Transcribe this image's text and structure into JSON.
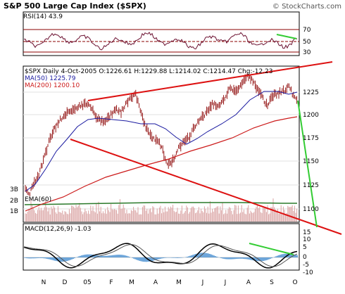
{
  "header": {
    "title": "S&P 500 Large Cap Index ($SPX)",
    "credit": "© StockCharts.com"
  },
  "rsi_panel": {
    "label": "RSI(14) 43.9",
    "levels": [
      "70",
      "50",
      "30"
    ]
  },
  "price_panel": {
    "info_line": "$SPX Daily 4-Oct-2005 O:1226.61 H:1229.88 L:1214.02 C:1214.47 Chg:-12.23",
    "ma50_label": "MA(50) 1225.79",
    "ma200_label": "MA(200) 1200.10",
    "price_ticks": [
      "1225",
      "1200",
      "1175",
      "1150",
      "1125",
      "1100"
    ],
    "volume_ticks": [
      "3B",
      "2B",
      "1B"
    ],
    "volume_ema_label": "EMA(60)"
  },
  "macd_panel": {
    "label": "MACD(12,26,9) -1.03",
    "ticks": [
      "15",
      "10",
      "5",
      "0",
      "-5",
      "-10"
    ]
  },
  "x_axis": {
    "labels": [
      "N",
      "D",
      "05",
      "F",
      "M",
      "A",
      "M",
      "J",
      "J",
      "A",
      "S",
      "O"
    ]
  },
  "colors": {
    "price_bars": "#8b0000",
    "ma50": "#1a1aa0",
    "ma200": "#cc1a1a",
    "trendline": "#dd1111",
    "divergence": "#33cc33",
    "volume": "#d9a0a0",
    "volume_ema": "#2a7a2a",
    "macd_hist": "#4a90d0"
  },
  "chart_data": {
    "type": "line",
    "title": "S&P 500 Large Cap Index ($SPX)",
    "x": [
      "N",
      "D",
      "05",
      "F",
      "M",
      "A",
      "M",
      "J",
      "J",
      "A",
      "S",
      "O"
    ],
    "series": [
      {
        "name": "MA(50)",
        "values": [
          1140,
          1168,
          1192,
          1195,
          1200,
          1190,
          1170,
          1175,
          1200,
          1225,
          1228,
          1226
        ]
      },
      {
        "name": "MA(200)",
        "values": [
          1110,
          1115,
          1125,
          1138,
          1152,
          1165,
          1170,
          1176,
          1182,
          1192,
          1196,
          1200
        ]
      }
    ],
    "ylim": [
      1090,
      1250
    ],
    "last_values": {
      "open": 1226.61,
      "high": 1229.88,
      "low": 1214.02,
      "close": 1214.47,
      "change": -12.23,
      "ma50": 1225.79,
      "ma200": 1200.1,
      "rsi14": 43.9,
      "macd": -1.03
    }
  }
}
